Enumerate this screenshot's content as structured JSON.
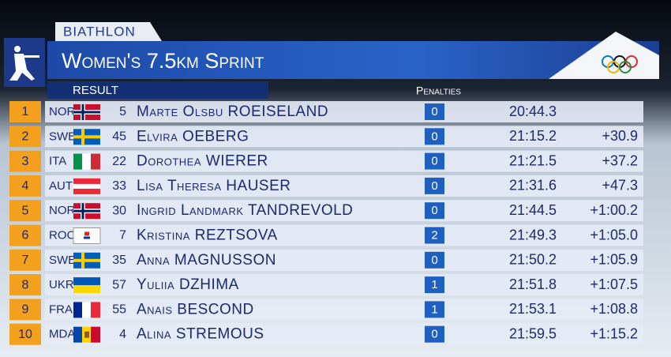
{
  "header": {
    "sport": "BIATHLON",
    "title": "Women's 7.5km Sprint",
    "subtitle": "RESULT",
    "penalties_label": "Penalties"
  },
  "table": {
    "rows": [
      {
        "rank": 1,
        "noc": "NOR",
        "bib": 5,
        "name": "Marte Olsbu ROEISELAND",
        "penalties": 0,
        "time": "20:44.3"
      },
      {
        "rank": 2,
        "noc": "SWE",
        "bib": 45,
        "name": "Elvira OEBERG",
        "penalties": 0,
        "time": "21:15.2",
        "behind": "+30.9"
      },
      {
        "rank": 3,
        "noc": "ITA",
        "bib": 22,
        "name": "Dorothea WIERER",
        "penalties": 0,
        "time": "21:21.5",
        "behind": "+37.2"
      },
      {
        "rank": 4,
        "noc": "AUT",
        "bib": 33,
        "name": "Lisa Theresa HAUSER",
        "penalties": 0,
        "time": "21:31.6",
        "behind": "+47.3"
      },
      {
        "rank": 5,
        "noc": "NOR",
        "bib": 30,
        "name": "Ingrid Landmark TANDREVOLD",
        "penalties": 0,
        "time": "21:44.5",
        "behind": "+1:00.2"
      },
      {
        "rank": 6,
        "noc": "ROC",
        "bib": 7,
        "name": "Kristina REZTSOVA",
        "penalties": 2,
        "time": "21:49.3",
        "behind": "+1:05.0"
      },
      {
        "rank": 7,
        "noc": "SWE",
        "bib": 35,
        "name": "Anna MAGNUSSON",
        "penalties": 0,
        "time": "21:50.2",
        "behind": "+1:05.9"
      },
      {
        "rank": 8,
        "noc": "UKR",
        "bib": 57,
        "name": "Yuliia DZHIMA",
        "penalties": 1,
        "time": "21:51.8",
        "behind": "+1:07.5"
      },
      {
        "rank": 9,
        "noc": "FRA",
        "bib": 55,
        "name": "Anais BESCOND",
        "penalties": 1,
        "time": "21:53.1",
        "behind": "+1:08.8"
      },
      {
        "rank": 10,
        "noc": "MDA",
        "bib": 4,
        "name": "Alina STREMOUS",
        "penalties": 0,
        "time": "21:59.5",
        "behind": "+1:15.2"
      }
    ]
  }
}
